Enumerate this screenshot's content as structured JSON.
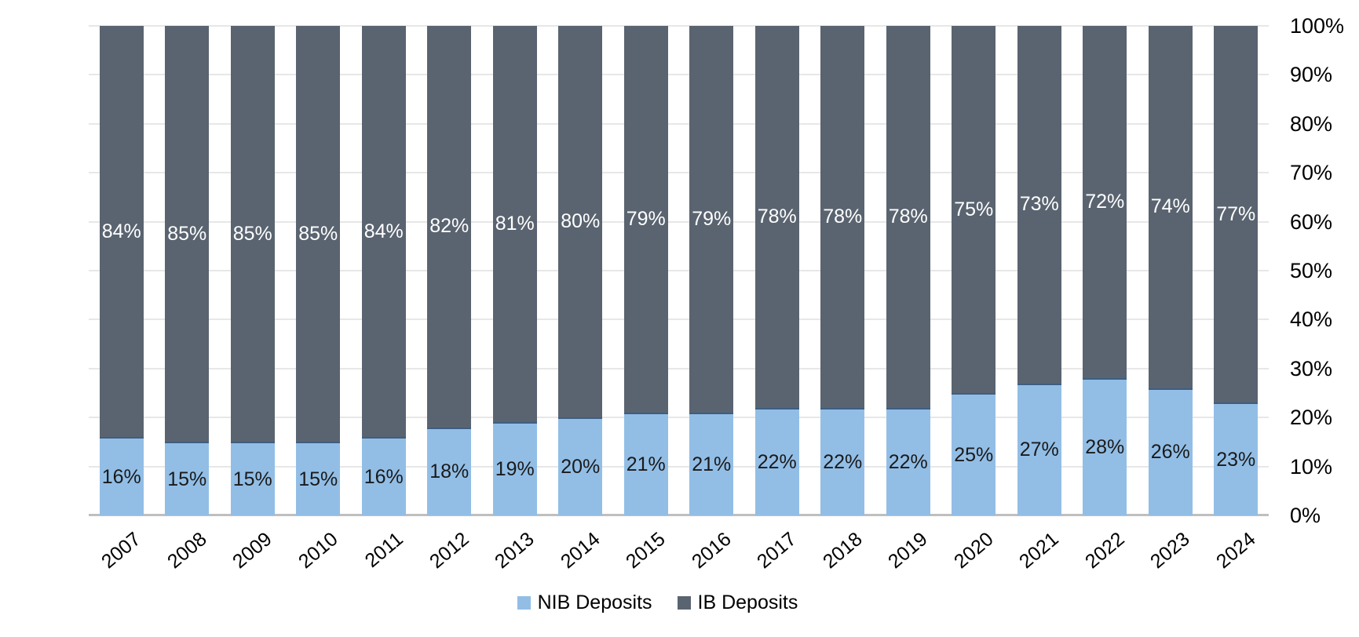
{
  "chart_data": {
    "type": "bar",
    "stacked": true,
    "percent_stacked": true,
    "title": "",
    "xlabel": "",
    "ylabel": "",
    "categories": [
      "2007",
      "2008",
      "2009",
      "2010",
      "2011",
      "2012",
      "2013",
      "2014",
      "2015",
      "2016",
      "2017",
      "2018",
      "2019",
      "2020",
      "2021",
      "2022",
      "2023",
      "2024"
    ],
    "series": [
      {
        "name": "NIB Deposits",
        "color": "#92BEE6",
        "border_top_color": "#3E5E82",
        "label_color": "#1a1a1a",
        "values": [
          16,
          15,
          15,
          15,
          16,
          18,
          19,
          20,
          21,
          21,
          22,
          22,
          22,
          25,
          27,
          28,
          26,
          23
        ],
        "labels": [
          "16%",
          "15%",
          "15%",
          "15%",
          "16%",
          "18%",
          "19%",
          "20%",
          "21%",
          "21%",
          "22%",
          "22%",
          "22%",
          "25%",
          "27%",
          "28%",
          "26%",
          "23%"
        ]
      },
      {
        "name": "IB Deposits",
        "color": "#5A6470",
        "label_color": "#ffffff",
        "values": [
          84,
          85,
          85,
          85,
          84,
          82,
          81,
          80,
          79,
          79,
          78,
          78,
          78,
          75,
          73,
          72,
          74,
          77
        ],
        "labels": [
          "84%",
          "85%",
          "85%",
          "85%",
          "84%",
          "82%",
          "81%",
          "80%",
          "79%",
          "79%",
          "78%",
          "78%",
          "78%",
          "75%",
          "73%",
          "72%",
          "74%",
          "77%"
        ]
      }
    ],
    "y_axis": {
      "side": "right",
      "min": 0,
      "max": 100,
      "ticks_top_to_bottom": [
        "100%",
        "90%",
        "80%",
        "70%",
        "60%",
        "50%",
        "40%",
        "30%",
        "20%",
        "10%",
        "0%"
      ],
      "grid": true,
      "gridline_color": "#e7e7e7",
      "baseline_color": "#bfbfbf"
    },
    "legend": {
      "position": "bottom",
      "entries": [
        "NIB Deposits",
        "IB Deposits"
      ]
    }
  }
}
